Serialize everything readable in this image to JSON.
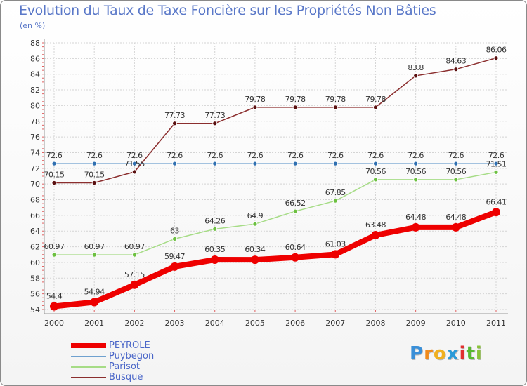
{
  "header": {
    "title": "Evolution du Taux de Taxe Foncière sur les Propriétés Non Bâties",
    "unit": "(en %)"
  },
  "chart_data": {
    "type": "line",
    "title": "Evolution du Taux de Taxe Foncière sur les Propriétés Non Bâties",
    "ylabel": "(en %)",
    "xlabel": "",
    "categories": [
      "2000",
      "2001",
      "2002",
      "2003",
      "2004",
      "2005",
      "2006",
      "2007",
      "2008",
      "2009",
      "2010",
      "2011"
    ],
    "ylim": [
      54,
      88
    ],
    "yticks": [
      54,
      56,
      58,
      60,
      62,
      64,
      66,
      68,
      70,
      72,
      74,
      76,
      78,
      80,
      82,
      84,
      86,
      88
    ],
    "grid": true,
    "legend_position": "bottom-left",
    "series": [
      {
        "name": "Busque",
        "color": "#8b2e2e",
        "marker": "#5a1010",
        "values": [
          70.15,
          70.15,
          71.55,
          77.73,
          77.73,
          79.78,
          79.78,
          79.78,
          79.78,
          83.8,
          84.63,
          86.06
        ],
        "labels": [
          "70.15",
          "70.15",
          "71.55",
          "77.73",
          "77.73",
          "79.78",
          "79.78",
          "79.78",
          "79.78",
          "83.8",
          "84.63",
          "86.06"
        ]
      },
      {
        "name": "Puybegon",
        "color": "#6fa1cf",
        "marker": "#2f6fb0",
        "values": [
          72.6,
          72.6,
          72.6,
          72.6,
          72.6,
          72.6,
          72.6,
          72.6,
          72.6,
          72.6,
          72.6,
          72.6
        ],
        "labels": [
          "72.6",
          "72.6",
          "72.6",
          "72.6",
          "72.6",
          "72.6",
          "72.6",
          "72.6",
          "72.6",
          "72.6",
          "72.6",
          "72.6"
        ]
      },
      {
        "name": "Parisot",
        "color": "#a6dc86",
        "marker": "#6cc040",
        "values": [
          60.97,
          60.97,
          60.97,
          63,
          64.26,
          64.9,
          66.52,
          67.85,
          70.56,
          70.56,
          70.56,
          71.51
        ],
        "labels": [
          "60.97",
          "60.97",
          "60.97",
          "63",
          "64.26",
          "64.9",
          "66.52",
          "67.85",
          "70.56",
          "70.56",
          "70.56",
          "71.51"
        ]
      },
      {
        "name": "PEYROLE",
        "color": "#ee0000",
        "marker": "#ee0000",
        "values": [
          54.4,
          54.94,
          57.15,
          59.47,
          60.35,
          60.34,
          60.64,
          61.03,
          63.48,
          64.48,
          64.48,
          66.41
        ],
        "labels": [
          "54.4",
          "54.94",
          "57.15",
          "59.47",
          "60.35",
          "60.34",
          "60.64",
          "61.03",
          "63.48",
          "64.48",
          "64.48",
          "66.41"
        ]
      }
    ]
  },
  "legend": {
    "items": [
      {
        "name": "PEYROLE",
        "color": "#ee0000"
      },
      {
        "name": "Puybegon",
        "color": "#6fa1cf"
      },
      {
        "name": "Parisot",
        "color": "#a6dc86"
      },
      {
        "name": "Busque",
        "color": "#8b2e2e"
      }
    ]
  },
  "logo": {
    "letters": [
      {
        "ch": "P",
        "color": "#3a8fd8"
      },
      {
        "ch": "r",
        "color": "#f08a1a"
      },
      {
        "ch": "o",
        "color": "#f0b020"
      },
      {
        "ch": "x",
        "color": "#2a9ad8"
      },
      {
        "ch": "i",
        "color": "#e03030"
      },
      {
        "ch": "t",
        "color": "#58b830"
      },
      {
        "ch": "i",
        "color": "#8ac23a"
      }
    ]
  }
}
